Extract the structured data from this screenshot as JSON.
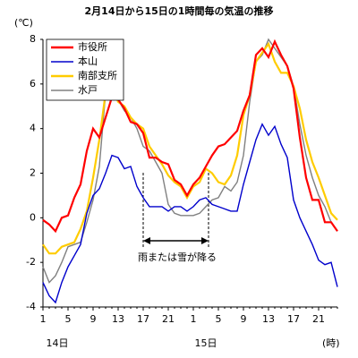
{
  "chart_data": {
    "type": "line",
    "title": "2月14日から15日の1時間毎の気温の推移",
    "y_label": "(℃)",
    "x_label": "(時)",
    "day_labels": [
      "14日",
      "15日"
    ],
    "annotation": "雨または雪が降る",
    "categories": [
      "1",
      null,
      null,
      null,
      "5",
      null,
      null,
      null,
      "9",
      null,
      null,
      null,
      "13",
      null,
      null,
      null,
      "17",
      null,
      null,
      null,
      "21",
      null,
      null,
      null,
      "1",
      null,
      null,
      null,
      "5",
      null,
      null,
      null,
      "9",
      null,
      null,
      null,
      "13",
      null,
      null,
      null,
      "17",
      null,
      null,
      null,
      "21",
      null,
      null,
      null
    ],
    "ylim": [
      -4,
      8
    ],
    "yticks": [
      -4,
      -2,
      0,
      2,
      4,
      6,
      8
    ],
    "grid": false,
    "legend": "top-left",
    "series": [
      {
        "name": "市役所",
        "color": "#ff0000",
        "values": [
          -0.1,
          -0.3,
          -0.6,
          0,
          0.1,
          0.9,
          1.5,
          3.0,
          4.0,
          3.6,
          4.5,
          5.4,
          5.3,
          4.9,
          4.3,
          4.2,
          3.8,
          2.7,
          2.7,
          2.5,
          2.4,
          1.7,
          1.5,
          1.0,
          1.5,
          1.8,
          2.3,
          2.8,
          3.2,
          3.3,
          3.6,
          3.9,
          4.8,
          5.5,
          7.3,
          7.6,
          7.2,
          7.9,
          7.3,
          6.8,
          5.8,
          3.6,
          1.8,
          0.8,
          0.8,
          -0.2,
          -0.2,
          -0.6
        ]
      },
      {
        "name": "本山",
        "color": "#0000cc",
        "values": [
          -2.9,
          -3.5,
          -3.8,
          -2.9,
          -2.2,
          -1.7,
          -1.2,
          0.2,
          1.0,
          1.3,
          2.0,
          2.8,
          2.7,
          2.2,
          2.3,
          1.4,
          0.9,
          0.5,
          0.5,
          0.5,
          0.3,
          0.5,
          0.5,
          0.3,
          0.5,
          0.8,
          0.9,
          0.6,
          0.5,
          0.4,
          0.3,
          0.3,
          1.5,
          2.5,
          3.5,
          4.2,
          3.7,
          4.1,
          3.3,
          2.7,
          0.8,
          0,
          -0.6,
          -1.2,
          -1.9,
          -2.1,
          -2.0,
          -3.1
        ]
      },
      {
        "name": "南部支所",
        "color": "#ffcc00",
        "values": [
          -1.2,
          -1.6,
          -1.6,
          -1.3,
          -1.2,
          -1.1,
          -0.5,
          0.3,
          1.8,
          3.5,
          5.6,
          5.8,
          5.2,
          5.0,
          4.5,
          4.2,
          4.0,
          3.2,
          2.8,
          2.4,
          1.9,
          1.6,
          1.4,
          0.9,
          1.4,
          1.6,
          2.2,
          2.0,
          1.6,
          1.5,
          1.9,
          2.8,
          4.6,
          5.5,
          7.0,
          7.4,
          7.8,
          7.0,
          6.5,
          6.5,
          5.9,
          4.9,
          3.5,
          2.5,
          1.8,
          1.0,
          0.2,
          -0.1
        ]
      },
      {
        "name": "水戸",
        "color": "#808080",
        "values": [
          -2.2,
          -2.9,
          -2.6,
          -2.0,
          -1.3,
          -1.2,
          -1.1,
          -0.2,
          0.8,
          2.3,
          5.6,
          6.2,
          5.3,
          4.8,
          4.5,
          4.0,
          3.2,
          3.0,
          2.5,
          2.0,
          0.6,
          0.2,
          0.1,
          0.1,
          0.1,
          0.2,
          0.5,
          0.8,
          0.9,
          1.4,
          1.2,
          1.6,
          2.8,
          5.2,
          7.0,
          7.3,
          8.0,
          7.6,
          7.2,
          6.8,
          5.9,
          4.2,
          2.8,
          1.8,
          1.0,
          0.5,
          -0.2,
          -0.6
        ]
      }
    ]
  }
}
